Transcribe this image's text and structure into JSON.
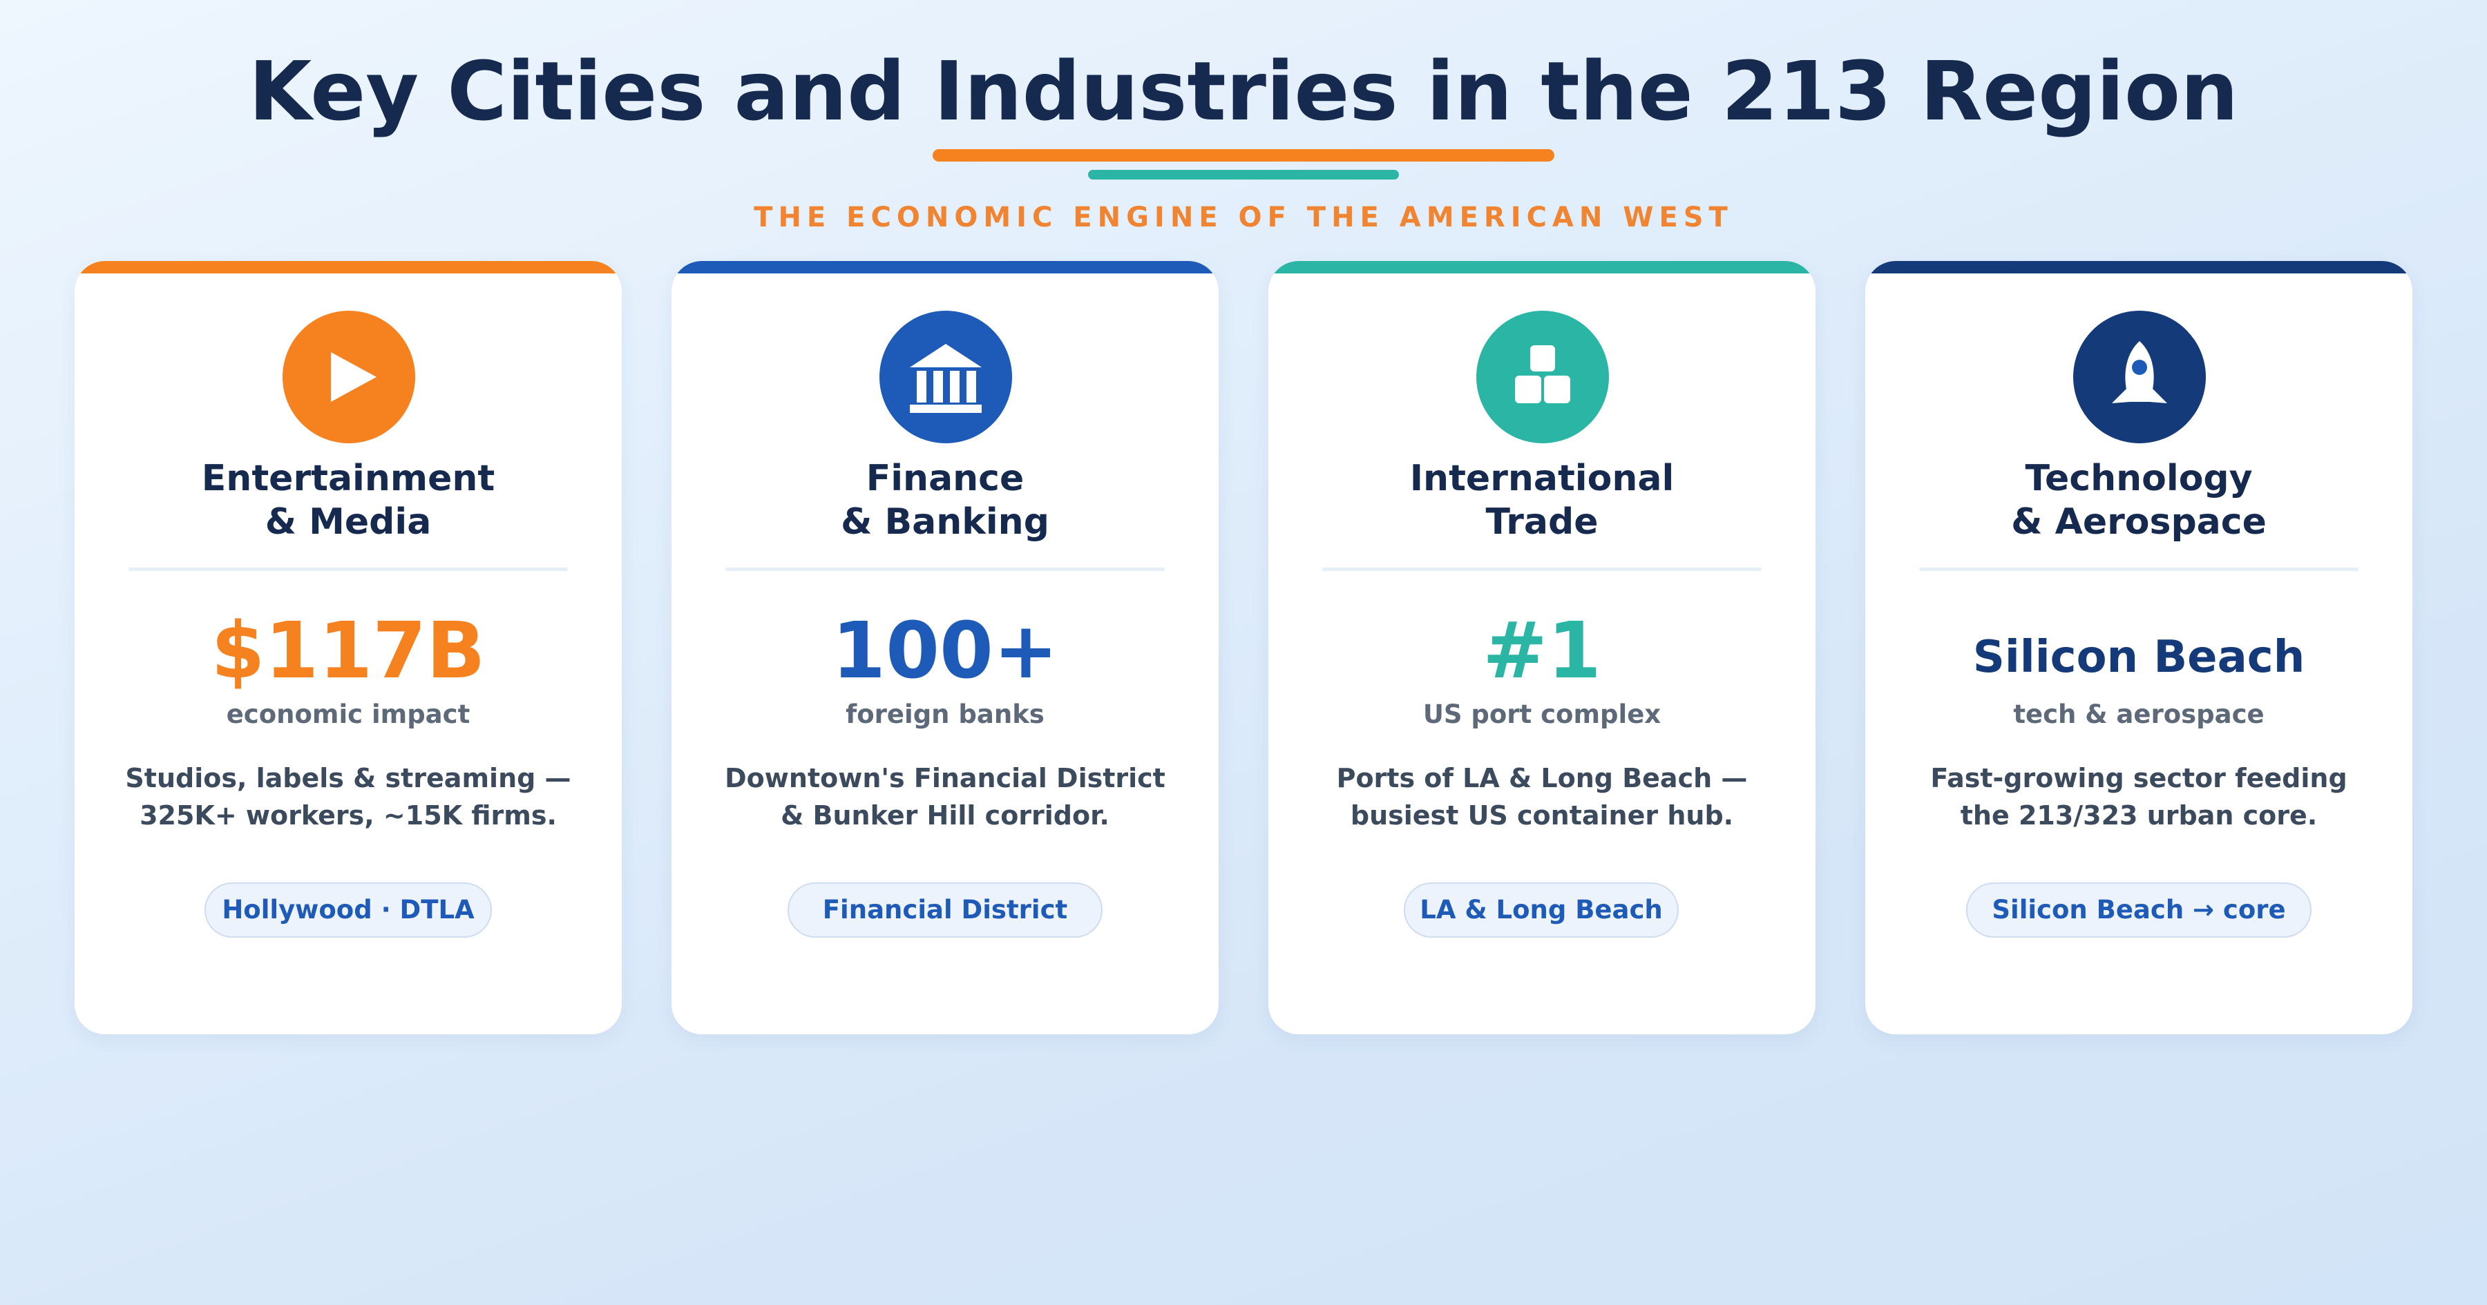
{
  "header": {
    "title": "Key Cities and Industries in the 213 Region",
    "subtitle": "THE ECONOMIC ENGINE OF THE AMERICAN WEST"
  },
  "colors": {
    "title": "#16294f",
    "orange": "#f5821f",
    "teal": "#2bb5a5",
    "blue": "#1e5bb8",
    "navy": "#153a7a"
  },
  "cards": [
    {
      "icon": "play-icon",
      "title_line1": "Entertainment",
      "title_line2": "& Media",
      "stat": "$117B",
      "stat_label": "economic impact",
      "desc_line1": "Studios, labels & streaming —",
      "desc_line2": "325K+ workers, ~15K firms.",
      "tag": "Hollywood · DTLA",
      "accent": "#f5821f"
    },
    {
      "icon": "bank-icon",
      "title_line1": "Finance",
      "title_line2": "& Banking",
      "stat": "100+",
      "stat_label": "foreign banks",
      "desc_line1": "Downtown's Financial District",
      "desc_line2": "& Bunker Hill corridor.",
      "tag": "Financial District",
      "accent": "#1e5bb8"
    },
    {
      "icon": "cargo-boxes-icon",
      "title_line1": "International",
      "title_line2": "Trade",
      "stat": "#1",
      "stat_label": "US port complex",
      "desc_line1": "Ports of LA & Long Beach —",
      "desc_line2": "busiest US container hub.",
      "tag": "LA & Long Beach",
      "accent": "#2bb5a5"
    },
    {
      "icon": "rocket-icon",
      "title_line1": "Technology",
      "title_line2": "& Aerospace",
      "stat": "Silicon Beach",
      "stat_label": "tech & aerospace",
      "desc_line1": "Fast-growing sector feeding",
      "desc_line2": "the 213/323 urban core.",
      "tag": "Silicon Beach → core",
      "accent": "#153a7a"
    }
  ]
}
